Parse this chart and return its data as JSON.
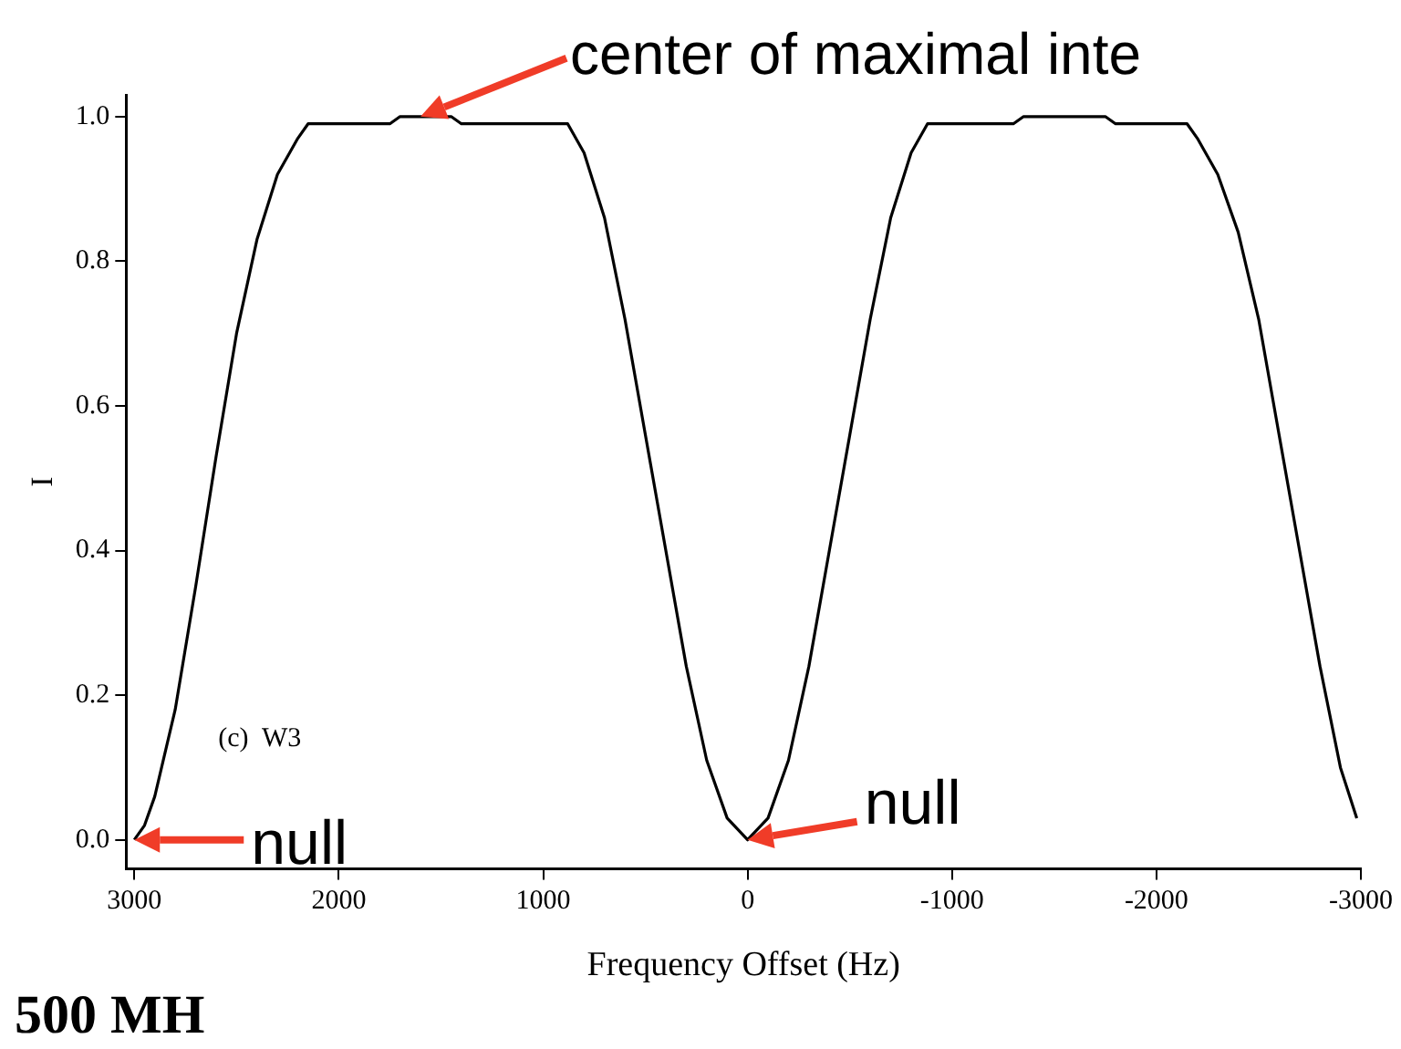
{
  "chart_data": {
    "type": "line",
    "xlabel": "Frequency Offset (Hz)",
    "ylabel": "I",
    "x": [
      3000,
      2950,
      2900,
      2800,
      2700,
      2600,
      2500,
      2400,
      2300,
      2200,
      2150,
      1750,
      1700,
      1450,
      1400,
      880,
      800,
      700,
      600,
      500,
      400,
      300,
      200,
      100,
      0,
      -100,
      -200,
      -300,
      -400,
      -500,
      -600,
      -700,
      -800,
      -880,
      -1300,
      -1350,
      -1750,
      -1800,
      -2150,
      -2200,
      -2300,
      -2400,
      -2500,
      -2600,
      -2700,
      -2800,
      -2900,
      -2980
    ],
    "series": [
      {
        "color": "#000000",
        "values": [
          0.0,
          0.02,
          0.06,
          0.18,
          0.35,
          0.53,
          0.7,
          0.83,
          0.92,
          0.97,
          0.99,
          0.99,
          1.0,
          1.0,
          0.99,
          0.99,
          0.95,
          0.86,
          0.72,
          0.56,
          0.4,
          0.24,
          0.11,
          0.03,
          0.0,
          0.03,
          0.11,
          0.24,
          0.4,
          0.56,
          0.72,
          0.86,
          0.95,
          0.99,
          0.99,
          1.0,
          1.0,
          0.99,
          0.99,
          0.97,
          0.92,
          0.84,
          0.72,
          0.56,
          0.4,
          0.24,
          0.1,
          0.03
        ]
      }
    ],
    "xlim": [
      3040,
      -3000
    ],
    "xticks": [
      3000,
      2000,
      1000,
      0,
      -1000,
      -2000,
      -3000
    ],
    "ylim": [
      -0.04,
      1.03
    ],
    "yticks": [
      {
        "value": 0,
        "label": "0.0"
      },
      {
        "value": 0.2,
        "label": "0.2"
      },
      {
        "value": 0.4,
        "label": "0.4"
      },
      {
        "value": 0.6,
        "label": "0.6"
      },
      {
        "value": 0.8,
        "label": "0.8"
      },
      {
        "value": 1,
        "label": "1.0"
      }
    ],
    "grid": false,
    "legend": false,
    "marker": "none",
    "line_style": "solid",
    "annotations": [
      {
        "text": "center of maximal inte",
        "x": 1600,
        "y": 1.0
      },
      {
        "text": "null",
        "x": 3000,
        "y": 0.0
      },
      {
        "text": "null",
        "x": 0,
        "y": 0.0
      },
      "(c)  W3",
      "500 MH"
    ]
  }
}
